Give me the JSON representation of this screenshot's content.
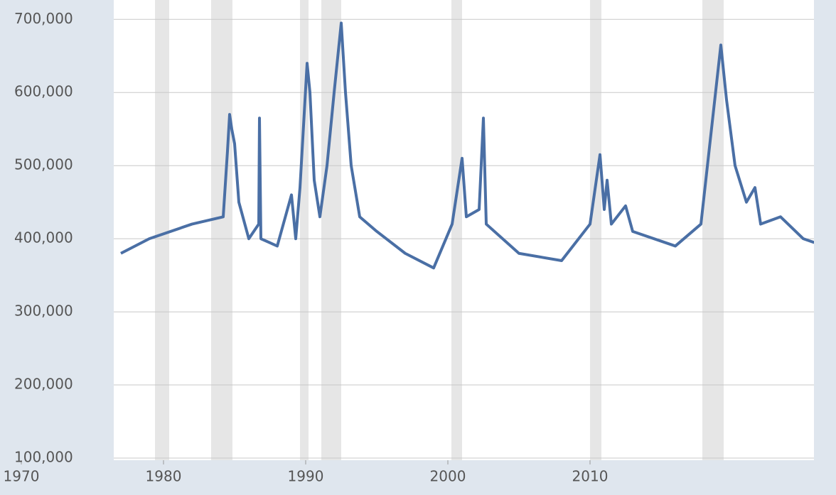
{
  "chart_data": {
    "type": "line",
    "x": [
      1977,
      1979,
      1982,
      1984.2,
      1984.5,
      1984.65,
      1984.8,
      1985,
      1985.3,
      1986,
      1986.7,
      1986.75,
      1986.85,
      1988,
      1989,
      1989.3,
      1989.6,
      1990.1,
      1990.3,
      1990.6,
      1991,
      1991.5,
      1992,
      1992.5,
      1992.8,
      1993.2,
      1993.8,
      1995,
      1997,
      1999,
      2000.3,
      2001,
      2001.3,
      2002.2,
      2002.5,
      2002.7,
      2005,
      2008,
      2010,
      2010.7,
      2011,
      2011.2,
      2011.5,
      2012.5,
      2013,
      2016,
      2017.8,
      2019.2,
      2019.6,
      2020.2,
      2021,
      2021.6,
      2022,
      2023.4,
      2025,
      2026.5
    ],
    "series": [
      {
        "color": "#4a6fa5",
        "values": [
          380000,
          400000,
          420000,
          430000,
          520000,
          570000,
          550000,
          530000,
          450000,
          400000,
          420000,
          565000,
          400000,
          390000,
          460000,
          400000,
          470000,
          640000,
          600000,
          480000,
          430000,
          500000,
          600000,
          695000,
          600000,
          500000,
          430000,
          410000,
          380000,
          360000,
          420000,
          510000,
          430000,
          440000,
          565000,
          420000,
          380000,
          370000,
          420000,
          515000,
          440000,
          480000,
          420000,
          445000,
          410000,
          390000,
          420000,
          665000,
          590000,
          500000,
          450000,
          470000,
          420000,
          430000,
          400000,
          390000
        ]
      }
    ],
    "shaded_ranges": [
      [
        1979.4,
        1980.4
      ],
      [
        1983.35,
        1984.85
      ],
      [
        1989.6,
        1990.2
      ],
      [
        1991.1,
        1992.5
      ],
      [
        2000.25,
        2001
      ],
      [
        2010,
        2010.8
      ],
      [
        2017.9,
        2019.4
      ]
    ],
    "xlim": [
      1969,
      2027
    ],
    "xticks": [
      1970,
      1980,
      1990,
      2000,
      2010
    ],
    "ylim": [
      100000,
      710000
    ],
    "yticks": [
      {
        "value": 100000,
        "label": "100,000"
      },
      {
        "value": 200000,
        "label": "200,000"
      },
      {
        "value": 300000,
        "label": "300,000"
      },
      {
        "value": 400000,
        "label": "400,000"
      },
      {
        "value": 500000,
        "label": "500,000"
      },
      {
        "value": 600000,
        "label": "600,000"
      },
      {
        "value": 700000,
        "label": "700,000"
      }
    ],
    "grid": true
  }
}
